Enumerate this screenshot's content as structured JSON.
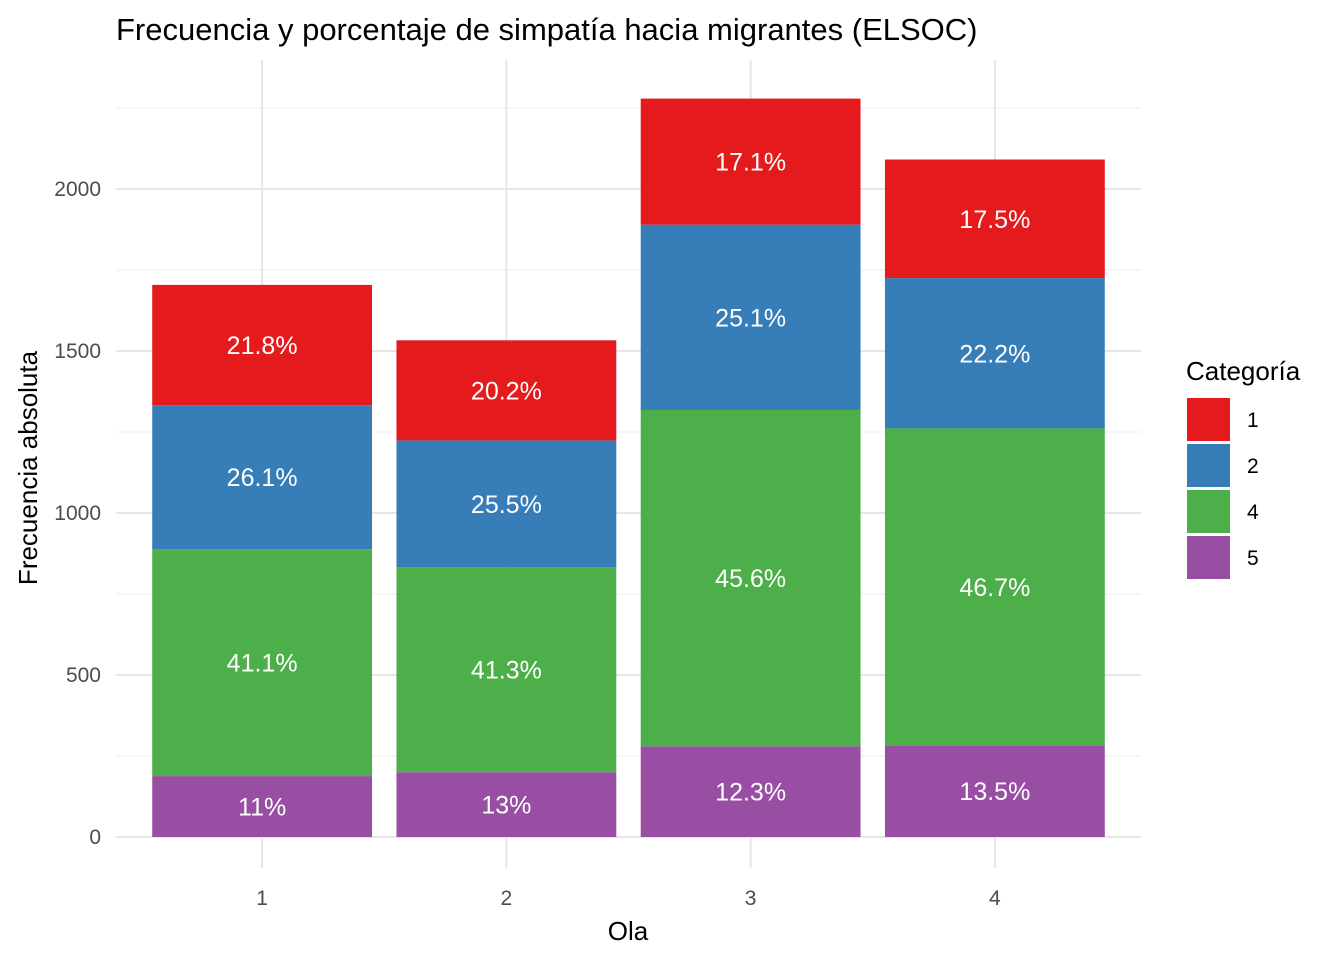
{
  "chart_data": {
    "type": "bar",
    "stacked": true,
    "title": "Frecuencia y porcentaje de simpatía hacia migrantes (ELSOC)",
    "xlabel": "Ola",
    "ylabel": "Frecuencia absoluta",
    "categories": [
      "1",
      "2",
      "3",
      "4"
    ],
    "ylim": [
      0,
      2390
    ],
    "yticks": [
      0,
      500,
      1000,
      1500,
      2000
    ],
    "ytick_labels": [
      "0",
      "500",
      "1000",
      "1500",
      "2000"
    ],
    "grid": true,
    "legend": {
      "title": "Categoría",
      "position": "right"
    },
    "series": [
      {
        "name": "5",
        "color": "#984EA3",
        "values": [
          188,
          200,
          280,
          283
        ],
        "labels": [
          "11%",
          "13%",
          "12.3%",
          "13.5%"
        ]
      },
      {
        "name": "4",
        "color": "#4DAF4A",
        "values": [
          700,
          633,
          1038,
          978
        ],
        "labels": [
          "41.1%",
          "41.3%",
          "45.6%",
          "46.7%"
        ]
      },
      {
        "name": "2",
        "color": "#377EB8",
        "values": [
          445,
          391,
          572,
          464
        ],
        "labels": [
          "26.1%",
          "25.5%",
          "25.1%",
          "22.2%"
        ]
      },
      {
        "name": "1",
        "color": "#E41A1C",
        "values": [
          371,
          309,
          389,
          366
        ],
        "labels": [
          "21.8%",
          "20.2%",
          "17.1%",
          "17.5%"
        ]
      }
    ],
    "legend_order": [
      "1",
      "2",
      "4",
      "5"
    ]
  }
}
